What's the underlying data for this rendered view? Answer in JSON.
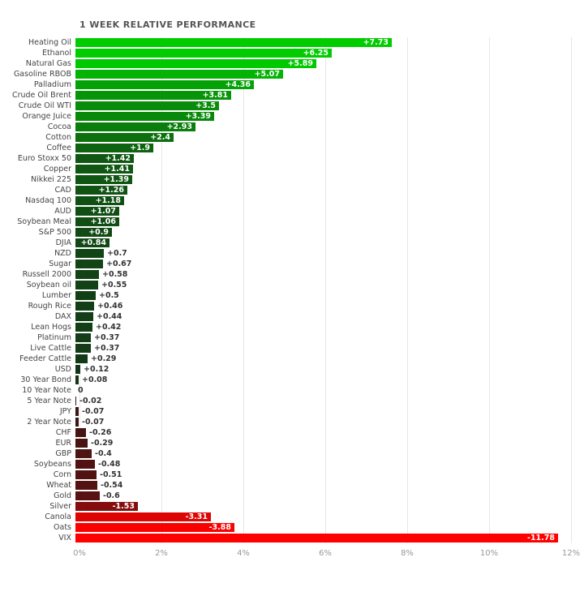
{
  "chart_data": {
    "type": "bar",
    "orientation": "horizontal",
    "title": "1 WEEK RELATIVE PERFORMANCE",
    "xlabel": "",
    "ylabel": "",
    "x_max": 12,
    "x_ticks": [
      "0%",
      "2%",
      "4%",
      "6%",
      "8%",
      "10%",
      "12%"
    ],
    "grid": true,
    "items": [
      {
        "label": "Heating Oil",
        "value": 7.73,
        "display": "+7.73"
      },
      {
        "label": "Ethanol",
        "value": 6.25,
        "display": "+6.25"
      },
      {
        "label": "Natural Gas",
        "value": 5.89,
        "display": "+5.89"
      },
      {
        "label": "Gasoline RBOB",
        "value": 5.07,
        "display": "+5.07"
      },
      {
        "label": "Palladium",
        "value": 4.36,
        "display": "+4.36"
      },
      {
        "label": "Crude Oil Brent",
        "value": 3.81,
        "display": "+3.81"
      },
      {
        "label": "Crude Oil WTI",
        "value": 3.5,
        "display": "+3.5"
      },
      {
        "label": "Orange Juice",
        "value": 3.39,
        "display": "+3.39"
      },
      {
        "label": "Cocoa",
        "value": 2.93,
        "display": "+2.93"
      },
      {
        "label": "Cotton",
        "value": 2.4,
        "display": "+2.4"
      },
      {
        "label": "Coffee",
        "value": 1.9,
        "display": "+1.9"
      },
      {
        "label": "Euro Stoxx 50",
        "value": 1.42,
        "display": "+1.42"
      },
      {
        "label": "Copper",
        "value": 1.41,
        "display": "+1.41"
      },
      {
        "label": "Nikkei 225",
        "value": 1.39,
        "display": "+1.39"
      },
      {
        "label": "CAD",
        "value": 1.26,
        "display": "+1.26"
      },
      {
        "label": "Nasdaq 100",
        "value": 1.18,
        "display": "+1.18"
      },
      {
        "label": "AUD",
        "value": 1.07,
        "display": "+1.07"
      },
      {
        "label": "Soybean Meal",
        "value": 1.06,
        "display": "+1.06"
      },
      {
        "label": "S&P 500",
        "value": 0.9,
        "display": "+0.9"
      },
      {
        "label": "DJIA",
        "value": 0.84,
        "display": "+0.84"
      },
      {
        "label": "NZD",
        "value": 0.7,
        "display": "+0.7"
      },
      {
        "label": "Sugar",
        "value": 0.67,
        "display": "+0.67"
      },
      {
        "label": "Russell 2000",
        "value": 0.58,
        "display": "+0.58"
      },
      {
        "label": "Soybean oil",
        "value": 0.55,
        "display": "+0.55"
      },
      {
        "label": "Lumber",
        "value": 0.5,
        "display": "+0.5"
      },
      {
        "label": "Rough Rice",
        "value": 0.46,
        "display": "+0.46"
      },
      {
        "label": "DAX",
        "value": 0.44,
        "display": "+0.44"
      },
      {
        "label": "Lean Hogs",
        "value": 0.42,
        "display": "+0.42"
      },
      {
        "label": "Platinum",
        "value": 0.37,
        "display": "+0.37"
      },
      {
        "label": "Live Cattle",
        "value": 0.37,
        "display": "+0.37"
      },
      {
        "label": "Feeder Cattle",
        "value": 0.29,
        "display": "+0.29"
      },
      {
        "label": "USD",
        "value": 0.12,
        "display": "+0.12"
      },
      {
        "label": "30 Year Bond",
        "value": 0.08,
        "display": "+0.08"
      },
      {
        "label": "10 Year Note",
        "value": 0,
        "display": "0"
      },
      {
        "label": "5 Year Note",
        "value": -0.02,
        "display": "-0.02"
      },
      {
        "label": "JPY",
        "value": -0.07,
        "display": "-0.07"
      },
      {
        "label": "2 Year Note",
        "value": -0.07,
        "display": "-0.07"
      },
      {
        "label": "CHF",
        "value": -0.26,
        "display": "-0.26"
      },
      {
        "label": "EUR",
        "value": -0.29,
        "display": "-0.29"
      },
      {
        "label": "GBP",
        "value": -0.4,
        "display": "-0.4"
      },
      {
        "label": "Soybeans",
        "value": -0.48,
        "display": "-0.48"
      },
      {
        "label": "Corn",
        "value": -0.51,
        "display": "-0.51"
      },
      {
        "label": "Wheat",
        "value": -0.54,
        "display": "-0.54"
      },
      {
        "label": "Gold",
        "value": -0.6,
        "display": "-0.6"
      },
      {
        "label": "Silver",
        "value": -1.53,
        "display": "-1.53"
      },
      {
        "label": "Canola",
        "value": -3.31,
        "display": "-3.31"
      },
      {
        "label": "Oats",
        "value": -3.88,
        "display": "-3.88"
      },
      {
        "label": "VIX",
        "value": -11.78,
        "display": "-11.78"
      }
    ],
    "colors": {
      "positive_bright": "#00cc00",
      "positive_dark": "#143318",
      "negative_bright": "#ff0000",
      "negative_dark": "#3a1515",
      "grid": "#e6e6e6",
      "axis_text": "#999999",
      "category_text": "#444444",
      "title_text": "#555555",
      "value_inside_text": "#ffffff",
      "value_outside_text": "#333333",
      "background": "#ffffff"
    }
  }
}
